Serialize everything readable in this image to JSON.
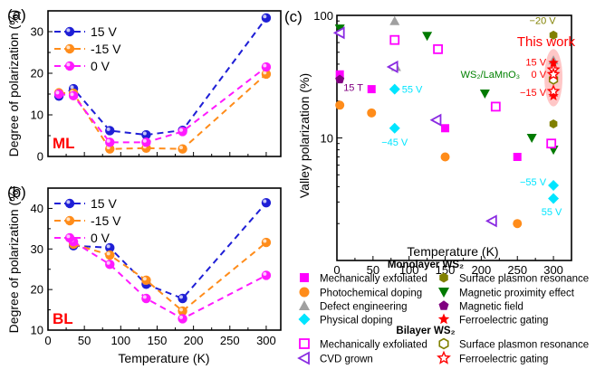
{
  "chart_data": [
    {
      "id": "a",
      "type": "line",
      "panel_label": "(a)",
      "tag": "ML",
      "tag_color": "#ff0000",
      "xlabel": "",
      "ylabel": "Degree of polarization (%)",
      "xlim": [
        0,
        320
      ],
      "ylim": [
        0,
        35
      ],
      "xticks": [
        0,
        50,
        100,
        150,
        200,
        250,
        300
      ],
      "yticks": [
        0,
        10,
        20,
        30
      ],
      "x": [
        15,
        35,
        85,
        135,
        185,
        300
      ],
      "series": [
        {
          "name": "15 V",
          "color": "#1f1fd6",
          "values": [
            14.5,
            16.3,
            6.2,
            5.2,
            6.3,
            33.3
          ]
        },
        {
          "name": "-15 V",
          "color": "#ff8c1a",
          "values": [
            15.3,
            15.2,
            1.8,
            2.0,
            1.8,
            19.8
          ]
        },
        {
          "name": "0 V",
          "color": "#ff1aff",
          "values": [
            15.0,
            14.6,
            3.4,
            3.4,
            6.0,
            21.5
          ]
        }
      ]
    },
    {
      "id": "b",
      "type": "line",
      "panel_label": "(b)",
      "tag": "BL",
      "tag_color": "#ff0000",
      "xlabel": "Temperature (K)",
      "ylabel": "Degree of polarization (%)",
      "xlim": [
        0,
        320
      ],
      "ylim": [
        10,
        45
      ],
      "xticks": [
        0,
        50,
        100,
        150,
        200,
        250,
        300
      ],
      "yticks": [
        10,
        20,
        30,
        40
      ],
      "x": [
        35,
        85,
        135,
        185,
        300
      ],
      "series": [
        {
          "name": "15 V",
          "color": "#1f1fd6",
          "values": [
            30.8,
            30.3,
            21.3,
            17.8,
            41.4
          ]
        },
        {
          "name": "-15 V",
          "color": "#ff8c1a",
          "values": [
            31.2,
            28.5,
            22.3,
            14.7,
            31.6
          ]
        },
        {
          "name": "0 V",
          "color": "#ff1aff",
          "values": [
            31.8,
            26.2,
            17.8,
            12.8,
            23.5
          ]
        }
      ]
    },
    {
      "id": "c",
      "type": "scatter",
      "panel_label": "(c)",
      "xlabel": "Temperature (K)",
      "ylabel": "Valley polarization (%)",
      "yscale": "log",
      "xlim": [
        0,
        325
      ],
      "ylim": [
        1,
        100
      ],
      "xticks": [
        0,
        50,
        100,
        150,
        200,
        250,
        300
      ],
      "yticks": [
        10,
        100
      ],
      "points": [
        {
          "group": "ml-mech",
          "x": 4,
          "y": 33
        },
        {
          "group": "ml-mech",
          "x": 48,
          "y": 25
        },
        {
          "group": "ml-mech",
          "x": 150,
          "y": 12
        },
        {
          "group": "ml-mech",
          "x": 250,
          "y": 7
        },
        {
          "group": "ml-photo",
          "x": 4,
          "y": 18.5
        },
        {
          "group": "ml-photo",
          "x": 48,
          "y": 16
        },
        {
          "group": "ml-photo",
          "x": 150,
          "y": 7
        },
        {
          "group": "ml-photo",
          "x": 250,
          "y": 2
        },
        {
          "group": "ml-defect",
          "x": 80,
          "y": 90
        },
        {
          "group": "ml-defect",
          "x": 82,
          "y": 38
        },
        {
          "group": "ml-defect",
          "x": 300,
          "y": 43
        },
        {
          "group": "ml-phys",
          "x": 80,
          "y": 25
        },
        {
          "group": "ml-phys",
          "x": 80,
          "y": 12
        },
        {
          "group": "ml-phys",
          "x": 300,
          "y": 4.1
        },
        {
          "group": "ml-phys",
          "x": 300,
          "y": 3.2
        },
        {
          "group": "ml-spr",
          "x": 300,
          "y": 69
        },
        {
          "group": "ml-spr",
          "x": 300,
          "y": 13
        },
        {
          "group": "ml-mpe",
          "x": 4,
          "y": 78
        },
        {
          "group": "ml-mpe",
          "x": 125,
          "y": 68
        },
        {
          "group": "ml-mpe",
          "x": 205,
          "y": 23
        },
        {
          "group": "ml-mpe",
          "x": 270,
          "y": 10
        },
        {
          "group": "ml-mpe",
          "x": 300,
          "y": 8
        },
        {
          "group": "ml-mag",
          "x": 4,
          "y": 30
        },
        {
          "group": "ml-fe",
          "x": 300,
          "y": 41
        },
        {
          "group": "ml-fe",
          "x": 300,
          "y": 22
        },
        {
          "group": "bl-mech",
          "x": 80,
          "y": 63
        },
        {
          "group": "bl-mech",
          "x": 140,
          "y": 53
        },
        {
          "group": "bl-mech",
          "x": 220,
          "y": 18
        },
        {
          "group": "bl-mech",
          "x": 297,
          "y": 9
        },
        {
          "group": "bl-cvd",
          "x": 4,
          "y": 72
        },
        {
          "group": "bl-cvd",
          "x": 78,
          "y": 38
        },
        {
          "group": "bl-cvd",
          "x": 138,
          "y": 14
        },
        {
          "group": "bl-cvd",
          "x": 215,
          "y": 2.1
        },
        {
          "group": "bl-spr",
          "x": 300,
          "y": 30
        },
        {
          "group": "bl-fe",
          "x": 300,
          "y": 36
        },
        {
          "group": "bl-fe",
          "x": 300,
          "y": 33
        },
        {
          "group": "bl-fe",
          "x": 300,
          "y": 24
        }
      ],
      "annotations": [
        {
          "text": "15 T",
          "x": 4,
          "y": 26,
          "color": "#800080"
        },
        {
          "text": "55 V",
          "x": 80,
          "y": 25,
          "color": "#00e5ff"
        },
        {
          "text": "−45 V",
          "x": 80,
          "y": 9.3,
          "color": "#00e5ff"
        },
        {
          "text": "WS₂/LaMnO₃",
          "x": 205,
          "y": 30,
          "color": "#008000"
        },
        {
          "text": "−20 V",
          "x": 300,
          "y": 85,
          "color": "#808000"
        },
        {
          "text": "This work",
          "x": 300,
          "y": 56,
          "color": "#ff0000"
        },
        {
          "text": "15 V",
          "x": 300,
          "y": 39,
          "color": "#ff0000"
        },
        {
          "text": "0 V",
          "x": 300,
          "y": 31,
          "color": "#ff0000"
        },
        {
          "text": "−15 V",
          "x": 300,
          "y": 22,
          "color": "#ff0000"
        },
        {
          "text": "−55 V",
          "x": 300,
          "y": 4.1,
          "color": "#00e5ff"
        },
        {
          "text": "55 V",
          "x": 300,
          "y": 2.5,
          "color": "#00e5ff"
        }
      ],
      "legend": {
        "placement": "bottom",
        "monolayer_title": "Monolayer WS₂",
        "bilayer_title": "Bilayer WS₂",
        "entries": [
          {
            "group": "ml-mech",
            "label": "Mechanically exfoliated",
            "marker": "square",
            "filled": true,
            "color": "#ff00ff"
          },
          {
            "group": "ml-photo",
            "label": "Photochemical doping",
            "marker": "circle",
            "filled": true,
            "color": "#ff8c1a"
          },
          {
            "group": "ml-defect",
            "label": "Defect engineering",
            "marker": "triangle-up",
            "filled": true,
            "color": "#a0a0a0"
          },
          {
            "group": "ml-phys",
            "label": "Physical doping",
            "marker": "diamond",
            "filled": true,
            "color": "#00e5ff"
          },
          {
            "group": "ml-spr",
            "label": "Surface plasmon resonance",
            "marker": "hexagon",
            "filled": true,
            "color": "#808000"
          },
          {
            "group": "ml-mpe",
            "label": "Magnetic proximity effect",
            "marker": "triangle-down",
            "filled": true,
            "color": "#007a00"
          },
          {
            "group": "ml-mag",
            "label": "Magnetic field",
            "marker": "pentagon",
            "filled": true,
            "color": "#800080"
          },
          {
            "group": "ml-fe",
            "label": "Ferroelectric gating",
            "marker": "star",
            "filled": true,
            "color": "#ff0000"
          },
          {
            "group": "bl-mech",
            "label": "Mechanically exfoliated",
            "marker": "square",
            "filled": false,
            "color": "#ff00ff"
          },
          {
            "group": "bl-cvd",
            "label": "CVD grown",
            "marker": "triangle-left",
            "filled": false,
            "color": "#8a2be2"
          },
          {
            "group": "bl-spr",
            "label": "Surface plasmon resonance",
            "marker": "hexagon",
            "filled": false,
            "color": "#808000"
          },
          {
            "group": "bl-fe",
            "label": "Ferroelectric gating",
            "marker": "star",
            "filled": false,
            "color": "#ff0000"
          }
        ]
      }
    }
  ]
}
